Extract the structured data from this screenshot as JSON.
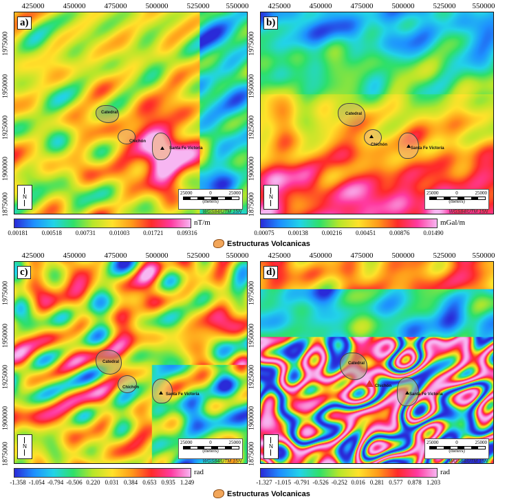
{
  "x_ticks": [
    "425000",
    "450000",
    "475000",
    "500000",
    "525000",
    "550000"
  ],
  "y_ticks": [
    "1975000",
    "1950000",
    "1925000",
    "1900000",
    "1875000"
  ],
  "north": "N",
  "scale": {
    "left": "25000",
    "mid": "0",
    "right": "25000",
    "unit": "(meters)",
    "crs": "WGS84/UTM 15N"
  },
  "legend_label": "Estructuras Volcanicas",
  "volcanoes": {
    "catedral": "Catedral",
    "chichon": "Chichón",
    "santa_fe": "Santa Fe Victoria"
  },
  "panels": [
    {
      "label": "a)",
      "unit": "nT/m",
      "ticks": [
        "0.00181",
        "0.00518",
        "0.00731",
        "0.01003",
        "0.01721",
        "0.09316"
      ]
    },
    {
      "label": "b)",
      "unit": "mGal/m",
      "ticks": [
        "0.00075",
        "0.00138",
        "0.00216",
        "0.00451",
        "0.00876",
        "0.01490"
      ]
    },
    {
      "label": "c)",
      "unit": "rad",
      "ticks": [
        "-1.358",
        "-1.054",
        "-0.794",
        "-0.506",
        "0.220",
        "0.031",
        "0.384",
        "0.653",
        "0.935",
        "1.249"
      ]
    },
    {
      "label": "d)",
      "unit": "rad",
      "ticks": [
        "-1.327",
        "-1.015",
        "-0.791",
        "-0.526",
        "-0.252",
        "0.016",
        "0.281",
        "0.577",
        "0.878",
        "1.203"
      ]
    }
  ],
  "colors": {
    "ramp": [
      "#2a2ad8",
      "#1e90ff",
      "#22d3e8",
      "#2ee06a",
      "#b6e62a",
      "#ffe22a",
      "#ff9a1a",
      "#ff2a2a",
      "#ff3aa0",
      "#f7b6f2"
    ]
  }
}
